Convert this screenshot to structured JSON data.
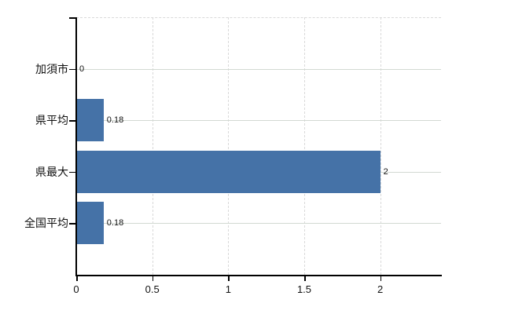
{
  "chart_data": {
    "type": "bar",
    "orientation": "horizontal",
    "title": "",
    "categories": [
      "加須市",
      "県平均",
      "県最大",
      "全国平均"
    ],
    "values": [
      0,
      0.18,
      2,
      0.18
    ],
    "value_labels": [
      "0",
      "0.18",
      "2",
      "0.18"
    ],
    "x_ticks": [
      0,
      0.5,
      1,
      1.5,
      2
    ],
    "x_tick_labels": [
      "0",
      "0.5",
      "1",
      "1.5",
      "2"
    ],
    "xlim": [
      0,
      2.4
    ],
    "grid": "on",
    "legend": "none",
    "colors": {
      "bar": "#4572a7",
      "grid_horizontal": "#d2d9d2",
      "grid_vertical": "#d9d9d9",
      "axis": "#000000",
      "text": "#111111"
    }
  }
}
